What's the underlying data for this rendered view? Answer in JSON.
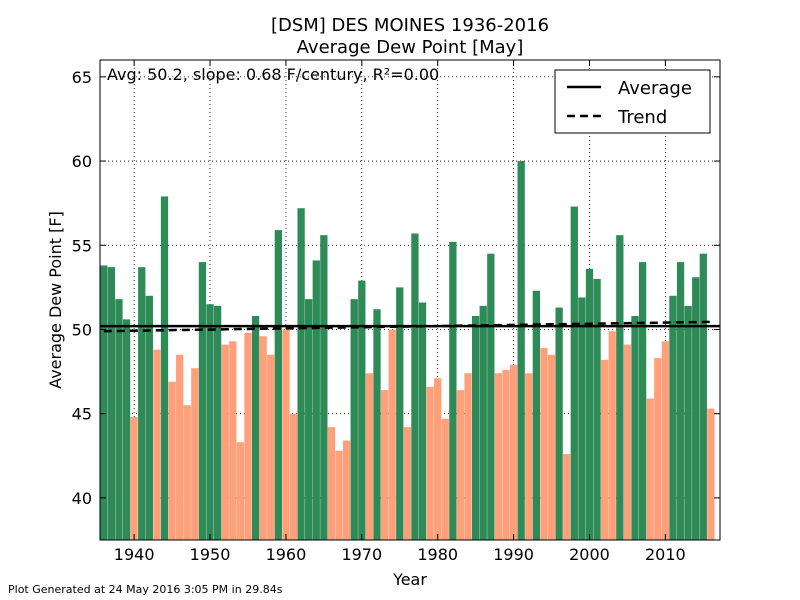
{
  "chart_data": {
    "type": "bar",
    "title": "[DSM] DES MOINES 1936-2016",
    "subtitle": "Average Dew Point [May]",
    "xlabel": "Year",
    "ylabel": "Average Dew Point [F]",
    "annotation": "Avg: 50.2, slope: 0.68 F/century, R²=0.00",
    "xlim": [
      1935.5,
      2017.2
    ],
    "ylim": [
      37.5,
      66.0
    ],
    "xticks": [
      1940,
      1950,
      1960,
      1970,
      1980,
      1990,
      2000,
      2010
    ],
    "yticks": [
      40,
      45,
      50,
      55,
      60,
      65
    ],
    "grid": true,
    "legend_position": "top-right",
    "legend": [
      {
        "label": "Average",
        "style": "solid"
      },
      {
        "label": "Trend",
        "style": "dashed"
      }
    ],
    "average": 50.2,
    "trend": {
      "start_year": 1936,
      "start_value": 49.9,
      "end_year": 2016,
      "end_value": 50.45
    },
    "colors": {
      "above": "#2e8b57",
      "below": "#ffa07a",
      "line": "#000000"
    },
    "years": [
      1936,
      1937,
      1938,
      1939,
      1940,
      1941,
      1942,
      1943,
      1944,
      1945,
      1946,
      1947,
      1948,
      1949,
      1950,
      1951,
      1952,
      1953,
      1954,
      1955,
      1956,
      1957,
      1958,
      1959,
      1960,
      1961,
      1962,
      1963,
      1964,
      1965,
      1966,
      1967,
      1968,
      1969,
      1970,
      1971,
      1972,
      1973,
      1974,
      1975,
      1976,
      1977,
      1978,
      1979,
      1980,
      1981,
      1982,
      1983,
      1984,
      1985,
      1986,
      1987,
      1988,
      1989,
      1990,
      1991,
      1992,
      1993,
      1994,
      1995,
      1996,
      1997,
      1998,
      1999,
      2000,
      2001,
      2002,
      2003,
      2004,
      2005,
      2006,
      2007,
      2008,
      2009,
      2010,
      2011,
      2012,
      2013,
      2014,
      2015,
      2016
    ],
    "values": [
      53.8,
      53.7,
      51.8,
      50.6,
      44.8,
      53.7,
      52.0,
      48.8,
      57.9,
      46.9,
      48.5,
      45.5,
      47.7,
      54.0,
      51.5,
      51.4,
      49.1,
      49.3,
      43.3,
      49.8,
      50.8,
      49.6,
      48.5,
      55.9,
      50.0,
      45.0,
      57.2,
      51.8,
      54.1,
      55.6,
      44.2,
      42.8,
      43.4,
      51.8,
      52.9,
      47.4,
      51.2,
      46.4,
      50.0,
      52.5,
      44.2,
      55.7,
      51.6,
      46.6,
      47.1,
      44.7,
      55.2,
      46.4,
      47.4,
      50.8,
      51.4,
      54.5,
      47.4,
      47.6,
      47.9,
      60.0,
      47.4,
      52.3,
      48.9,
      48.5,
      51.3,
      42.6,
      57.3,
      51.9,
      53.6,
      53.0,
      48.2,
      49.9,
      55.6,
      49.1,
      50.8,
      54.0,
      45.9,
      48.3,
      49.3,
      52.0,
      54.0,
      51.4,
      53.1,
      54.5,
      45.3
    ]
  },
  "footer": {
    "generated": "Plot Generated at 24 May 2016 3:05 PM in 29.84s"
  }
}
